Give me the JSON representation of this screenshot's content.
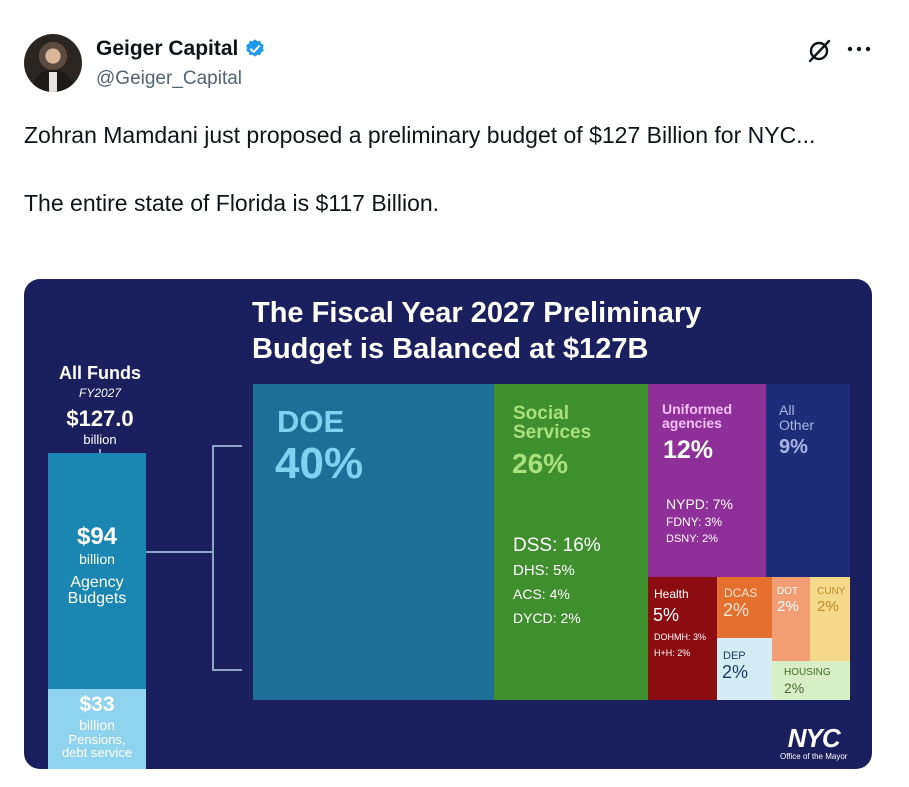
{
  "tweet": {
    "author_name": "Geiger Capital",
    "author_handle": "@Geiger_Capital",
    "verified_icon": "verified-badge-icon",
    "text_line1": "Zohran Mamdani just proposed a preliminary budget of $127 Billion for NYC...",
    "text_line2": "The entire state of Florida is $117 Billion.",
    "header_icons": [
      "grok-icon",
      "more-options-icon"
    ],
    "accent_color": "#1d9bf0"
  },
  "infographic": {
    "title_line1": "The Fiscal Year 2027 Preliminary",
    "title_line2": "Budget is Balanced at $127B",
    "all_funds": {
      "heading": "All Funds",
      "fy": "FY2027",
      "amount": "$127.0",
      "unit": "billion"
    },
    "agency": {
      "amount": "$94",
      "unit": "billion",
      "label_line1": "Agency",
      "label_line2": "Budgets"
    },
    "pensions": {
      "amount": "$33",
      "unit": "billion",
      "label_line1": "Pensions,",
      "label_line2": "debt service"
    },
    "blocks": {
      "doe": {
        "name": "DOE",
        "pct": "40%"
      },
      "social": {
        "name_line1": "Social",
        "name_line2": "Services",
        "pct": "26%",
        "items": [
          "DSS: 16%",
          "DHS: 5%",
          "ACS: 4%",
          "DYCD: 2%"
        ]
      },
      "uniformed": {
        "name_line1": "Uniformed",
        "name_line2": "agencies",
        "pct": "12%",
        "items": [
          "NYPD: 7%",
          "FDNY: 3%",
          "DSNY: 2%"
        ]
      },
      "other": {
        "name_line1": "All",
        "name_line2": "Other",
        "pct": "9%"
      },
      "health": {
        "name": "Health",
        "pct": "5%",
        "items": [
          "DOHMH: 3%",
          "H+H: 2%"
        ]
      },
      "dcas": {
        "name": "DCAS",
        "pct": "2%"
      },
      "dot": {
        "name": "DOT",
        "pct": "2%"
      },
      "cuny": {
        "name": "CUNY",
        "pct": "2%"
      },
      "dep": {
        "name": "DEP",
        "pct": "2%"
      },
      "housing": {
        "name": "HOUSING",
        "pct": "2%"
      }
    },
    "logo_text": "NYC",
    "logo_sub": "Office of the Mayor",
    "colors": {
      "background": "#1b1f5e",
      "doe": "#1d6f95",
      "social": "#3f8f2f",
      "uniformed": "#8f2f98",
      "other": "#1e2d7a",
      "health": "#8b0d12",
      "dcas": "#e3702f",
      "dot": "#f29d73",
      "cuny": "#f6d98a",
      "dep": "#d4ecf4",
      "housing": "#d8eec6"
    }
  }
}
